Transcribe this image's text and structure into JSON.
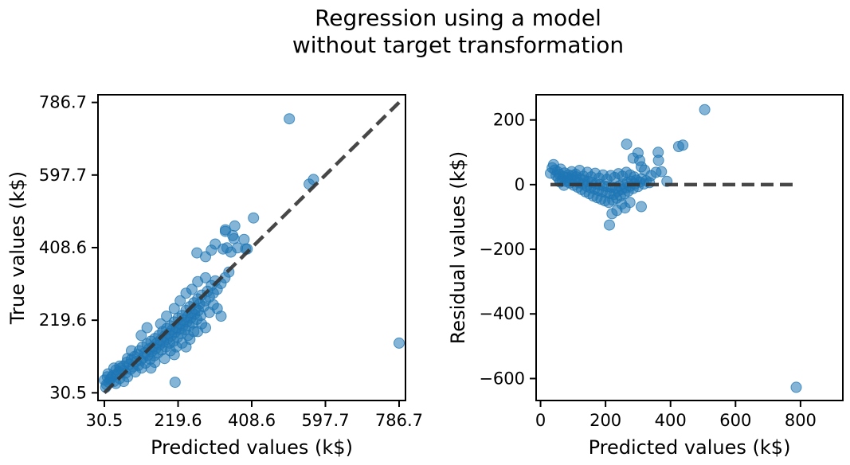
{
  "figure": {
    "title_line1": "Regression using a model",
    "title_line2": "without target transformation"
  },
  "colors": {
    "points": "#1f77b4",
    "reference_line": "#333333",
    "axes": "#000000"
  },
  "chart_data": [
    {
      "type": "scatter",
      "xlabel": "Predicted values (k$)",
      "ylabel": "True values (k$)",
      "xlim": [
        14.1,
        803.1
      ],
      "ylim": [
        10.5,
        806.7
      ],
      "xticks": [
        30.5,
        219.6,
        408.6,
        597.7,
        786.7
      ],
      "xtick_labels": [
        "30.5",
        "219.6",
        "408.6",
        "597.7",
        "786.7"
      ],
      "yticks": [
        30.5,
        219.6,
        408.6,
        597.7,
        786.7
      ],
      "ytick_labels": [
        "30.5",
        "219.6",
        "408.6",
        "597.7",
        "786.7"
      ],
      "reference_line": {
        "style": "dashed",
        "from": [
          30.5,
          30.5
        ],
        "to": [
          786.7,
          786.7
        ]
      },
      "grid": false,
      "points": [
        [
          30.5,
          63.5
        ],
        [
          36.0,
          52.0
        ],
        [
          40.0,
          80.0
        ],
        [
          48.0,
          70.0
        ],
        [
          52.0,
          75.0
        ],
        [
          55.0,
          60.0
        ],
        [
          60.0,
          90.0
        ],
        [
          62.0,
          78.0
        ],
        [
          67.0,
          85.0
        ],
        [
          70.0,
          68.0
        ],
        [
          72.0,
          95.0
        ],
        [
          78.0,
          88.0
        ],
        [
          80.0,
          100.0
        ],
        [
          85.0,
          82.0
        ],
        [
          88.0,
          110.0
        ],
        [
          90.0,
          72.0
        ],
        [
          95.0,
          105.0
        ],
        [
          98.0,
          92.0
        ],
        [
          100.0,
          118.0
        ],
        [
          104.0,
          98.0
        ],
        [
          108.0,
          125.0
        ],
        [
          110.0,
          85.0
        ],
        [
          112.0,
          112.0
        ],
        [
          116.0,
          130.0
        ],
        [
          118.0,
          102.0
        ],
        [
          120.0,
          140.0
        ],
        [
          124.0,
          115.0
        ],
        [
          126.0,
          95.0
        ],
        [
          128.0,
          150.0
        ],
        [
          130.0,
          122.0
        ],
        [
          134.0,
          135.0
        ],
        [
          136.0,
          108.0
        ],
        [
          140.0,
          158.0
        ],
        [
          142.0,
          128.0
        ],
        [
          145.0,
          145.0
        ],
        [
          148.0,
          118.0
        ],
        [
          150.0,
          165.0
        ],
        [
          152.0,
          138.0
        ],
        [
          155.0,
          150.0
        ],
        [
          158.0,
          127.0
        ],
        [
          160.0,
          172.0
        ],
        [
          162.0,
          145.0
        ],
        [
          165.0,
          160.0
        ],
        [
          168.0,
          135.0
        ],
        [
          170.0,
          180.0
        ],
        [
          172.0,
          155.0
        ],
        [
          175.0,
          168.0
        ],
        [
          178.0,
          142.0
        ],
        [
          180.0,
          190.0
        ],
        [
          182.0,
          162.0
        ],
        [
          185.0,
          178.0
        ],
        [
          188.0,
          150.0
        ],
        [
          190.0,
          198.0
        ],
        [
          192.0,
          170.0
        ],
        [
          195.0,
          185.0
        ],
        [
          198.0,
          160.0
        ],
        [
          200.0,
          205.0
        ],
        [
          202.0,
          178.0
        ],
        [
          205.0,
          195.0
        ],
        [
          208.0,
          165.0
        ],
        [
          210.0,
          215.0
        ],
        [
          212.0,
          188.0
        ],
        [
          215.0,
          200.0
        ],
        [
          218.0,
          175.0
        ],
        [
          220.0,
          225.0
        ],
        [
          222.0,
          196.0
        ],
        [
          225.0,
          210.0
        ],
        [
          228.0,
          185.0
        ],
        [
          230.0,
          232.0
        ],
        [
          232.0,
          205.0
        ],
        [
          235.0,
          220.0
        ],
        [
          238.0,
          195.0
        ],
        [
          240.0,
          245.0
        ],
        [
          242.0,
          215.0
        ],
        [
          245.0,
          230.0
        ],
        [
          248.0,
          205.0
        ],
        [
          250.0,
          255.0
        ],
        [
          252.0,
          225.0
        ],
        [
          255.0,
          240.0
        ],
        [
          258.0,
          212.0
        ],
        [
          260.0,
          265.0
        ],
        [
          262.0,
          235.0
        ],
        [
          265.0,
          250.0
        ],
        [
          268.0,
          222.0
        ],
        [
          270.0,
          275.0
        ],
        [
          272.0,
          245.0
        ],
        [
          275.0,
          262.0
        ],
        [
          278.0,
          232.0
        ],
        [
          280.0,
          285.0
        ],
        [
          285.0,
          255.0
        ],
        [
          290.0,
          270.0
        ],
        [
          295.0,
          295.0
        ],
        [
          300.0,
          280.0
        ],
        [
          305.0,
          310.0
        ],
        [
          310.0,
          290.0
        ],
        [
          315.0,
          322.0
        ],
        [
          320.0,
          300.0
        ],
        [
          330.0,
          315.0
        ],
        [
          340.0,
          330.0
        ],
        [
          350.0,
          345.0
        ],
        [
          125.0,
          180.0
        ],
        [
          140.0,
          200.0
        ],
        [
          150.0,
          95.0
        ],
        [
          160.0,
          110.0
        ],
        [
          175.0,
          210.0
        ],
        [
          185.0,
          120.0
        ],
        [
          190.0,
          230.0
        ],
        [
          200.0,
          140.0
        ],
        [
          210.0,
          250.0
        ],
        [
          215.0,
          150.0
        ],
        [
          225.0,
          270.0
        ],
        [
          230.0,
          160.0
        ],
        [
          240.0,
          290.0
        ],
        [
          245.0,
          180.0
        ],
        [
          255.0,
          300.0
        ],
        [
          260.0,
          190.0
        ],
        [
          270.0,
          320.0
        ],
        [
          280.0,
          210.0
        ],
        [
          290.0,
          330.0
        ],
        [
          300.0,
          240.0
        ],
        [
          310.0,
          260.0
        ],
        [
          320.0,
          250.0
        ],
        [
          330.0,
          230.0
        ],
        [
          290.0,
          200.0
        ],
        [
          270.0,
          190.0
        ],
        [
          250.0,
          170.0
        ],
        [
          100.0,
          140.0
        ],
        [
          90.0,
          120.0
        ],
        [
          80.0,
          60.0
        ],
        [
          70.0,
          100.0
        ],
        [
          60.0,
          55.0
        ],
        [
          55.0,
          95.0
        ],
        [
          45.0,
          65.0
        ],
        [
          42.0,
          58.0
        ],
        [
          38.0,
          72.0
        ],
        [
          34.0,
          45.0
        ],
        [
          210.0,
          130.0
        ],
        [
          240.0,
          150.0
        ],
        [
          212.0,
          58.0
        ],
        [
          268.0,
          395.0
        ],
        [
          290.0,
          385.0
        ],
        [
          305.0,
          402.0
        ],
        [
          315.0,
          418.0
        ],
        [
          335.0,
          405.0
        ],
        [
          345.0,
          408.0
        ],
        [
          355.0,
          397.0
        ],
        [
          363.0,
          432.0
        ],
        [
          372.0,
          408.0
        ],
        [
          360.0,
          440.0
        ],
        [
          365.0,
          465.0
        ],
        [
          389.0,
          430.0
        ],
        [
          413.0,
          486.0
        ],
        [
          393.0,
          405.0
        ],
        [
          397.0,
          405.0
        ],
        [
          341.0,
          455.0
        ],
        [
          341.0,
          451.0
        ],
        [
          556.0,
          574.0
        ],
        [
          567.0,
          586.0
        ],
        [
          505.0,
          744.0
        ],
        [
          786.7,
          160.0
        ]
      ]
    },
    {
      "type": "scatter",
      "xlabel": "Predicted values (k$)",
      "ylabel": "Residual values (k$)",
      "xlim": [
        -13.6,
        930.2
      ],
      "ylim": [
        -667.9,
        278.0
      ],
      "xticks": [
        0,
        200,
        400,
        600,
        800
      ],
      "xtick_labels": [
        "0",
        "200",
        "400",
        "600",
        "800"
      ],
      "yticks": [
        200,
        0,
        -200,
        -400,
        -600
      ],
      "ytick_labels": [
        "200",
        "0",
        "−200",
        "−400",
        "−600"
      ],
      "reference_line": {
        "style": "dashed",
        "from": [
          30.5,
          0
        ],
        "to": [
          786.7,
          0
        ]
      },
      "grid": false,
      "points": [
        [
          30.5,
          35.0
        ],
        [
          36.0,
          52.0
        ],
        [
          40.0,
          62.0
        ],
        [
          44.0,
          45.0
        ],
        [
          48.0,
          28.0
        ],
        [
          52.0,
          40.0
        ],
        [
          55.0,
          20.0
        ],
        [
          58.0,
          32.0
        ],
        [
          62.0,
          48.0
        ],
        [
          66.0,
          15.0
        ],
        [
          70.0,
          25.0
        ],
        [
          74.0,
          36.0
        ],
        [
          78.0,
          10.0
        ],
        [
          82.0,
          22.0
        ],
        [
          86.0,
          30.0
        ],
        [
          90.0,
          5.0
        ],
        [
          94.0,
          18.0
        ],
        [
          98.0,
          28.0
        ],
        [
          102.0,
          -2.0
        ],
        [
          106.0,
          12.0
        ],
        [
          110.0,
          24.0
        ],
        [
          114.0,
          -8.0
        ],
        [
          118.0,
          6.0
        ],
        [
          122.0,
          18.0
        ],
        [
          126.0,
          -15.0
        ],
        [
          130.0,
          2.0
        ],
        [
          134.0,
          14.0
        ],
        [
          138.0,
          -22.0
        ],
        [
          142.0,
          -5.0
        ],
        [
          146.0,
          10.0
        ],
        [
          150.0,
          -28.0
        ],
        [
          154.0,
          -10.0
        ],
        [
          158.0,
          6.0
        ],
        [
          162.0,
          -35.0
        ],
        [
          166.0,
          -14.0
        ],
        [
          170.0,
          2.0
        ],
        [
          174.0,
          -40.0
        ],
        [
          178.0,
          -18.0
        ],
        [
          182.0,
          0.0
        ],
        [
          186.0,
          -45.0
        ],
        [
          190.0,
          -22.0
        ],
        [
          194.0,
          -4.0
        ],
        [
          198.0,
          -50.0
        ],
        [
          202.0,
          -25.0
        ],
        [
          206.0,
          -6.0
        ],
        [
          210.0,
          -55.0
        ],
        [
          214.0,
          -28.0
        ],
        [
          218.0,
          -8.0
        ],
        [
          222.0,
          -48.0
        ],
        [
          226.0,
          -30.0
        ],
        [
          230.0,
          -10.0
        ],
        [
          234.0,
          -42.0
        ],
        [
          238.0,
          -20.0
        ],
        [
          242.0,
          -4.0
        ],
        [
          246.0,
          -35.0
        ],
        [
          250.0,
          -15.0
        ],
        [
          254.0,
          2.0
        ],
        [
          258.0,
          -28.0
        ],
        [
          262.0,
          -10.0
        ],
        [
          266.0,
          6.0
        ],
        [
          270.0,
          -20.0
        ],
        [
          275.0,
          -5.0
        ],
        [
          280.0,
          10.0
        ],
        [
          285.0,
          -12.0
        ],
        [
          290.0,
          2.0
        ],
        [
          295.0,
          14.0
        ],
        [
          300.0,
          -6.0
        ],
        [
          305.0,
          8.0
        ],
        [
          310.0,
          18.0
        ],
        [
          318.0,
          2.0
        ],
        [
          325.0,
          12.0
        ],
        [
          335.0,
          6.0
        ],
        [
          60.0,
          8.0
        ],
        [
          72.0,
          -2.0
        ],
        [
          84.0,
          12.0
        ],
        [
          96.0,
          40.0
        ],
        [
          108.0,
          32.0
        ],
        [
          120.0,
          44.0
        ],
        [
          132.0,
          26.0
        ],
        [
          144.0,
          38.0
        ],
        [
          156.0,
          24.0
        ],
        [
          168.0,
          35.0
        ],
        [
          180.0,
          20.0
        ],
        [
          192.0,
          30.0
        ],
        [
          204.0,
          16.0
        ],
        [
          216.0,
          28.0
        ],
        [
          228.0,
          22.0
        ],
        [
          240.0,
          34.0
        ],
        [
          252.0,
          26.0
        ],
        [
          264.0,
          38.0
        ],
        [
          276.0,
          30.0
        ],
        [
          288.0,
          24.0
        ],
        [
          212.0,
          -125.0
        ],
        [
          220.0,
          -90.0
        ],
        [
          235.0,
          -80.0
        ],
        [
          250.0,
          -60.0
        ],
        [
          260.0,
          -72.0
        ],
        [
          275.0,
          -55.0
        ],
        [
          310.0,
          -68.0
        ],
        [
          265.0,
          125.0
        ],
        [
          285.0,
          82.0
        ],
        [
          300.0,
          98.0
        ],
        [
          305.0,
          75.0
        ],
        [
          310.0,
          55.0
        ],
        [
          320.0,
          45.0
        ],
        [
          340.0,
          28.0
        ],
        [
          355.0,
          38.0
        ],
        [
          362.0,
          100.0
        ],
        [
          363.0,
          75.0
        ],
        [
          372.0,
          40.0
        ],
        [
          389.0,
          10.0
        ],
        [
          425.0,
          118.0
        ],
        [
          438.0,
          122.0
        ],
        [
          505.0,
          232.0
        ],
        [
          786.7,
          -627.0
        ]
      ]
    }
  ]
}
